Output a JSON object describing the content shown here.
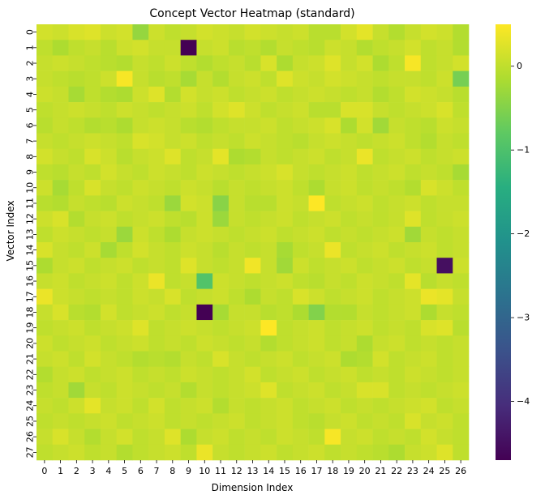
{
  "chart_data": {
    "type": "heatmap",
    "title": "Concept Vector Heatmap (standard)",
    "xlabel": "Dimension Index",
    "ylabel": "Vector Index",
    "x_ticks": [
      "0",
      "1",
      "2",
      "3",
      "4",
      "5",
      "6",
      "7",
      "8",
      "9",
      "10",
      "11",
      "12",
      "13",
      "14",
      "15",
      "16",
      "17",
      "18",
      "19",
      "20",
      "21",
      "22",
      "23",
      "24",
      "25",
      "26"
    ],
    "y_ticks": [
      "0",
      "1",
      "2",
      "3",
      "4",
      "5",
      "6",
      "7",
      "8",
      "9",
      "10",
      "11",
      "12",
      "13",
      "14",
      "15",
      "16",
      "17",
      "18",
      "19",
      "20",
      "21",
      "22",
      "23",
      "24",
      "25",
      "26",
      "27"
    ],
    "colormap": "viridis",
    "vmin": -4.7,
    "vmax": 0.5,
    "colorbar_ticks": [
      "0",
      "−1",
      "−2",
      "−3",
      "−4"
    ],
    "colorbar_tick_values": [
      0,
      -1,
      -2,
      -3,
      -4
    ],
    "values": [
      [
        0.15,
        0.1,
        0.2,
        0.25,
        0.1,
        0.15,
        -0.35,
        0.1,
        0.0,
        0.05,
        0.15,
        0.1,
        0.05,
        0.15,
        0.1,
        0.05,
        0.1,
        -0.05,
        -0.05,
        0.15,
        0.3,
        0.05,
        -0.1,
        0.05,
        0.15,
        0.1,
        -0.1
      ],
      [
        0.0,
        -0.15,
        0.0,
        0.05,
        -0.05,
        0.1,
        0.15,
        0.05,
        0.05,
        -4.7,
        0.05,
        0.1,
        -0.05,
        0.0,
        -0.1,
        0.05,
        0.0,
        -0.05,
        0.1,
        0.05,
        -0.1,
        0.0,
        0.05,
        0.15,
        0.0,
        0.05,
        -0.1
      ],
      [
        0.05,
        0.1,
        0.05,
        0.0,
        -0.05,
        -0.1,
        0.05,
        0.0,
        0.1,
        0.0,
        -0.1,
        0.0,
        0.05,
        -0.05,
        0.2,
        -0.15,
        0.05,
        0.1,
        0.25,
        0.05,
        0.15,
        -0.15,
        0.0,
        0.45,
        0.0,
        0.05,
        0.15
      ],
      [
        0.05,
        0.0,
        -0.05,
        0.0,
        0.1,
        0.45,
        0.05,
        -0.05,
        0.0,
        -0.2,
        0.05,
        -0.1,
        0.05,
        0.1,
        0.0,
        0.25,
        0.1,
        0.05,
        0.15,
        0.1,
        0.05,
        0.0,
        0.05,
        0.05,
        0.0,
        0.1,
        -0.6
      ],
      [
        0.1,
        0.05,
        -0.2,
        0.0,
        -0.1,
        -0.15,
        0.1,
        0.25,
        -0.1,
        0.15,
        0.05,
        0.1,
        0.0,
        0.05,
        0.1,
        0.0,
        0.05,
        0.1,
        0.05,
        0.0,
        0.05,
        -0.1,
        0.0,
        0.15,
        0.1,
        0.05,
        -0.05
      ],
      [
        0.0,
        0.05,
        0.1,
        0.05,
        0.0,
        0.1,
        0.05,
        0.0,
        0.05,
        0.1,
        0.0,
        0.15,
        0.25,
        0.1,
        0.0,
        0.05,
        0.1,
        -0.05,
        -0.05,
        0.2,
        0.2,
        0.05,
        0.0,
        0.05,
        0.1,
        0.2,
        0.0
      ],
      [
        -0.05,
        0.05,
        0.0,
        -0.1,
        -0.05,
        -0.15,
        0.05,
        0.1,
        0.05,
        -0.05,
        -0.1,
        0.0,
        0.05,
        0.05,
        0.1,
        0.0,
        0.05,
        0.1,
        0.2,
        -0.15,
        0.15,
        -0.25,
        0.05,
        0.0,
        -0.05,
        0.1,
        0.05
      ],
      [
        0.05,
        0.0,
        0.05,
        0.1,
        0.05,
        0.0,
        0.2,
        0.15,
        0.05,
        0.1,
        0.0,
        0.05,
        0.0,
        0.1,
        0.05,
        0.0,
        -0.05,
        0.05,
        0.1,
        0.05,
        0.0,
        0.05,
        0.1,
        0.0,
        -0.1,
        0.05,
        0.0
      ],
      [
        0.15,
        0.05,
        0.0,
        0.2,
        0.1,
        -0.05,
        0.05,
        0.1,
        0.25,
        0.0,
        0.05,
        0.3,
        -0.15,
        -0.1,
        0.05,
        0.0,
        0.05,
        0.1,
        0.0,
        0.05,
        0.35,
        0.0,
        0.05,
        0.1,
        0.0,
        0.05,
        0.1
      ],
      [
        0.0,
        -0.05,
        0.05,
        0.0,
        0.15,
        0.05,
        0.0,
        0.1,
        0.05,
        0.0,
        0.1,
        0.05,
        0.0,
        0.05,
        0.1,
        0.2,
        0.05,
        0.0,
        0.05,
        0.1,
        0.0,
        0.05,
        0.1,
        0.0,
        0.05,
        0.0,
        -0.2
      ],
      [
        0.1,
        -0.2,
        0.0,
        0.2,
        0.05,
        0.0,
        0.1,
        0.05,
        0.0,
        0.1,
        0.05,
        -0.05,
        0.05,
        0.0,
        0.05,
        0.1,
        0.0,
        -0.15,
        0.05,
        0.1,
        0.0,
        0.05,
        0.0,
        -0.1,
        0.2,
        0.1,
        0.0
      ],
      [
        -0.05,
        -0.1,
        0.05,
        0.0,
        -0.05,
        0.1,
        0.05,
        0.0,
        -0.3,
        0.15,
        0.1,
        -0.45,
        0.05,
        -0.05,
        -0.05,
        0.1,
        0.05,
        0.5,
        0.0,
        0.05,
        0.1,
        0.0,
        0.05,
        0.1,
        0.0,
        0.05,
        0.05
      ],
      [
        0.1,
        0.2,
        -0.1,
        0.05,
        0.1,
        0.0,
        0.05,
        0.1,
        0.0,
        -0.05,
        0.1,
        -0.3,
        0.05,
        0.0,
        0.05,
        0.1,
        0.0,
        0.05,
        0.1,
        0.0,
        0.05,
        0.0,
        0.05,
        0.25,
        0.0,
        0.05,
        0.1
      ],
      [
        0.0,
        0.1,
        0.05,
        0.0,
        0.05,
        -0.3,
        0.1,
        0.0,
        -0.15,
        0.05,
        0.1,
        0.05,
        0.0,
        0.05,
        0.1,
        0.0,
        0.05,
        0.1,
        0.0,
        0.05,
        0.0,
        0.05,
        0.1,
        -0.25,
        0.05,
        0.0,
        0.05
      ],
      [
        0.2,
        0.05,
        0.0,
        0.1,
        -0.2,
        0.0,
        0.15,
        0.05,
        0.0,
        0.1,
        0.05,
        -0.05,
        0.05,
        0.0,
        0.05,
        -0.2,
        0.0,
        0.05,
        0.35,
        0.0,
        0.05,
        0.1,
        0.0,
        0.05,
        0.1,
        0.0,
        0.05
      ],
      [
        -0.15,
        0.05,
        0.1,
        0.0,
        0.05,
        0.1,
        0.0,
        0.05,
        0.0,
        0.25,
        0.05,
        0.0,
        0.05,
        0.4,
        0.05,
        -0.25,
        0.1,
        0.0,
        0.05,
        0.1,
        0.0,
        0.05,
        0.1,
        0.0,
        0.05,
        -4.5,
        0.1
      ],
      [
        0.05,
        0.1,
        0.0,
        0.05,
        0.1,
        0.0,
        0.1,
        0.35,
        0.0,
        0.05,
        -0.95,
        0.1,
        0.05,
        0.0,
        0.05,
        0.1,
        0.0,
        -0.05,
        0.05,
        0.0,
        0.1,
        0.05,
        0.0,
        0.3,
        -0.05,
        0.05,
        0.0
      ],
      [
        0.35,
        0.1,
        0.05,
        0.0,
        0.05,
        0.0,
        0.1,
        0.05,
        0.2,
        0.0,
        0.05,
        0.1,
        0.0,
        -0.15,
        0.05,
        0.0,
        0.2,
        0.1,
        0.0,
        0.05,
        0.1,
        0.0,
        0.05,
        0.1,
        0.35,
        0.3,
        0.05
      ],
      [
        0.05,
        0.2,
        -0.05,
        -0.1,
        0.15,
        0.0,
        0.05,
        0.1,
        0.0,
        0.05,
        -4.7,
        -0.2,
        0.05,
        0.05,
        -0.05,
        0.0,
        -0.15,
        -0.5,
        -0.1,
        -0.1,
        0.05,
        0.0,
        0.05,
        0.1,
        -0.15,
        0.05,
        0.0
      ],
      [
        0.0,
        0.05,
        0.1,
        0.0,
        0.05,
        0.1,
        0.25,
        0.0,
        0.05,
        0.1,
        0.05,
        0.0,
        0.05,
        0.1,
        0.5,
        0.0,
        0.05,
        0.1,
        0.0,
        0.05,
        0.1,
        0.0,
        0.05,
        0.0,
        0.2,
        0.25,
        -0.05
      ],
      [
        0.1,
        0.0,
        0.05,
        0.1,
        0.0,
        0.05,
        0.1,
        0.0,
        0.05,
        0.0,
        0.1,
        0.05,
        0.0,
        0.05,
        -0.1,
        0.0,
        0.05,
        0.1,
        0.0,
        0.05,
        -0.15,
        0.05,
        0.1,
        0.0,
        0.05,
        0.0,
        0.05
      ],
      [
        0.05,
        0.1,
        0.0,
        0.15,
        0.05,
        0.0,
        -0.1,
        -0.05,
        -0.1,
        0.05,
        0.0,
        0.2,
        0.05,
        0.0,
        0.05,
        0.1,
        0.0,
        0.05,
        0.1,
        -0.15,
        -0.1,
        0.15,
        0.0,
        0.05,
        0.1,
        0.0,
        0.05
      ],
      [
        -0.1,
        0.05,
        0.1,
        0.0,
        0.05,
        0.1,
        0.0,
        0.05,
        0.0,
        0.1,
        0.05,
        0.0,
        0.05,
        0.15,
        0.0,
        0.05,
        0.1,
        0.0,
        0.05,
        0.1,
        0.0,
        0.05,
        0.0,
        0.1,
        0.05,
        0.0,
        0.05
      ],
      [
        0.0,
        0.05,
        -0.25,
        0.05,
        0.0,
        0.1,
        0.05,
        0.0,
        0.05,
        -0.1,
        0.05,
        0.0,
        0.05,
        0.1,
        0.25,
        0.0,
        0.05,
        0.1,
        0.0,
        0.05,
        0.2,
        0.2,
        0.0,
        0.05,
        0.0,
        0.05,
        0.1
      ],
      [
        0.05,
        0.0,
        0.1,
        0.3,
        0.05,
        0.1,
        0.0,
        0.15,
        0.0,
        0.05,
        0.1,
        -0.1,
        0.05,
        0.0,
        0.05,
        0.1,
        0.0,
        0.05,
        0.1,
        0.0,
        0.05,
        0.0,
        0.05,
        0.1,
        0.15,
        0.0,
        0.05
      ],
      [
        0.0,
        0.05,
        0.0,
        0.05,
        0.1,
        0.0,
        0.05,
        0.1,
        0.0,
        0.05,
        0.0,
        0.05,
        0.1,
        0.0,
        0.05,
        0.1,
        0.0,
        -0.05,
        0.05,
        0.1,
        0.0,
        0.05,
        0.0,
        0.2,
        0.05,
        0.1,
        0.0
      ],
      [
        0.05,
        0.2,
        0.05,
        -0.1,
        0.05,
        0.15,
        0.0,
        0.05,
        0.25,
        -0.15,
        0.05,
        0.1,
        0.0,
        0.05,
        0.0,
        0.1,
        0.05,
        0.0,
        0.45,
        0.05,
        0.1,
        0.0,
        0.05,
        0.0,
        0.15,
        0.05,
        0.0
      ],
      [
        0.0,
        0.05,
        0.1,
        0.0,
        0.05,
        -0.1,
        0.0,
        0.05,
        0.1,
        0.0,
        0.35,
        0.05,
        0.0,
        0.05,
        0.1,
        0.0,
        0.05,
        0.1,
        0.0,
        0.05,
        0.0,
        -0.05,
        -0.15,
        0.05,
        0.1,
        0.25,
        0.0
      ]
    ]
  }
}
